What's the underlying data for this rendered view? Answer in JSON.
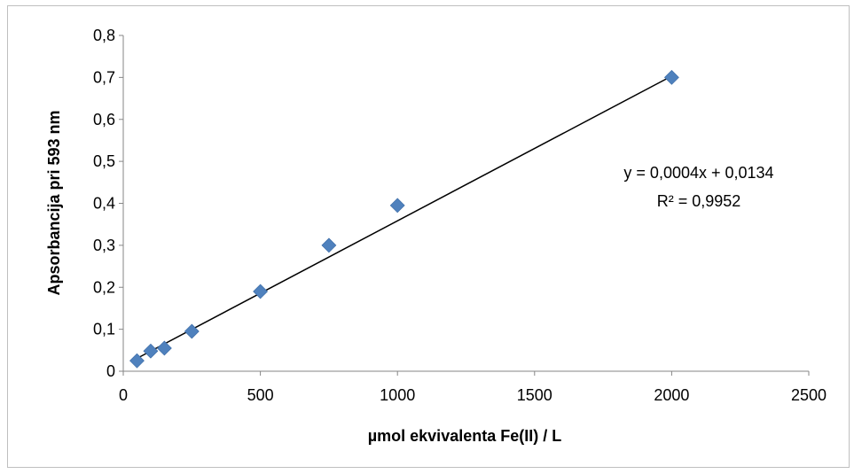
{
  "chart_data": {
    "type": "scatter",
    "title": "",
    "xlabel": "µmol ekvivalenta Fe(II) / L",
    "ylabel": "Apsorbancija pri 593 nm",
    "xlim": [
      0,
      2500
    ],
    "ylim": [
      0,
      0.8
    ],
    "x_ticks": [
      "0",
      "500",
      "1000",
      "1500",
      "2000",
      "2500"
    ],
    "y_ticks": [
      "0",
      "0,1",
      "0,2",
      "0,3",
      "0,4",
      "0,5",
      "0,6",
      "0,7",
      "0,8"
    ],
    "grid": false,
    "legend": false,
    "series": [
      {
        "marker": "diamond",
        "color": "#4F81BD",
        "points": [
          {
            "x": 50,
            "y": 0.025
          },
          {
            "x": 100,
            "y": 0.048
          },
          {
            "x": 150,
            "y": 0.055
          },
          {
            "x": 250,
            "y": 0.095
          },
          {
            "x": 500,
            "y": 0.19
          },
          {
            "x": 750,
            "y": 0.3
          },
          {
            "x": 1000,
            "y": 0.395
          },
          {
            "x": 2000,
            "y": 0.7
          }
        ]
      }
    ],
    "trendline": {
      "type": "linear",
      "color": "#000000",
      "slope": 0.0003449,
      "intercept": 0.0134,
      "x_range": [
        50,
        2000
      ],
      "equation": "y = 0,0004x + 0,0134",
      "r_squared": "R² = 0,9952"
    }
  }
}
